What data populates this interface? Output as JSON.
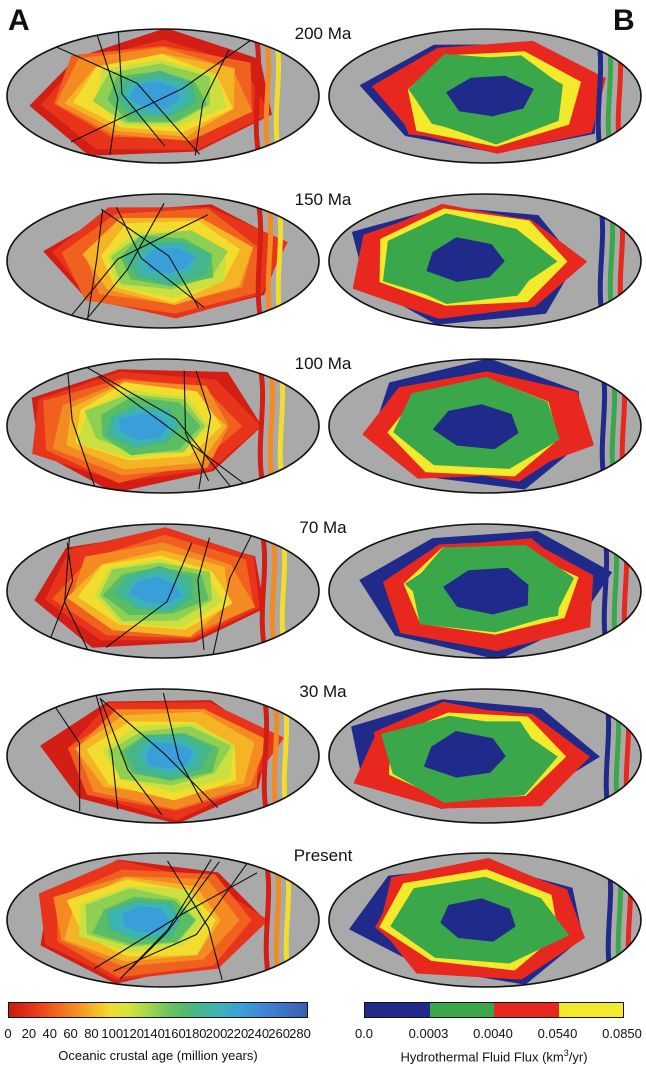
{
  "panels": {
    "left_letter": "A",
    "right_letter": "B"
  },
  "eras": [
    {
      "label": "200 Ma",
      "seed": 1
    },
    {
      "label": "150 Ma",
      "seed": 2
    },
    {
      "label": "100 Ma",
      "seed": 3
    },
    {
      "label": "70 Ma",
      "seed": 4
    },
    {
      "label": "30 Ma",
      "seed": 5
    },
    {
      "label": "Present",
      "seed": 6
    }
  ],
  "age_colorbar": {
    "title": "Oceanic crustal age (million years)",
    "ticks": [
      "0",
      "20",
      "40",
      "60",
      "80",
      "100",
      "120",
      "140",
      "160",
      "180",
      "200",
      "220",
      "240",
      "260",
      "280"
    ]
  },
  "flux_colorbar": {
    "title_prefix": "Hydrothermal Fluid Flux (km",
    "title_sup": "3",
    "title_suffix": "/yr)",
    "ticks": [
      "0.0",
      "0.0003",
      "0.0040",
      "0.0540",
      "0.0850"
    ],
    "colors": [
      "#1f2a8a",
      "#3aa84a",
      "#e8281e",
      "#f2ea2a"
    ]
  },
  "colors": {
    "land": "#a9a9a9",
    "old_crust": "#3c5cb0",
    "young_crust": "#d21e14",
    "mid_crust": "#f5b326"
  }
}
